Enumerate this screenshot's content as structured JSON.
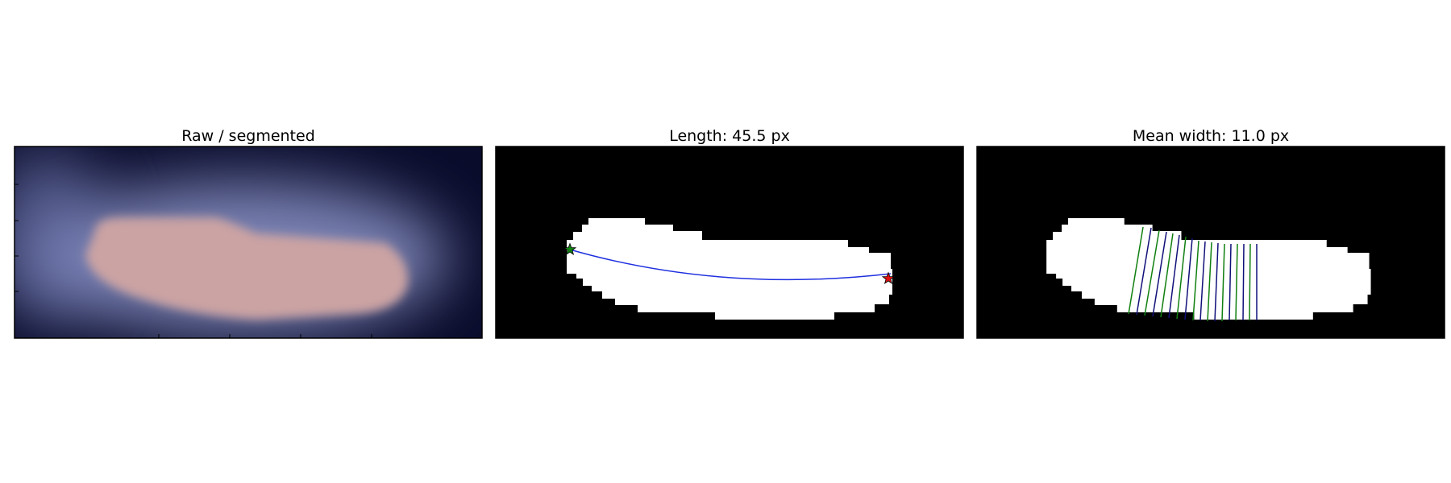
{
  "panels": {
    "raw": {
      "title": "Raw / segmented"
    },
    "length": {
      "title": "Length: 45.5 px"
    },
    "width": {
      "title": "Mean width: 11.0 px"
    }
  },
  "colors": {
    "background_dark": "#0a0c2c",
    "glow": "#aab2e0",
    "segmentation_overlay": "#c7a0a0",
    "mask": "#ffffff",
    "mask_background": "#000000",
    "centerline": "#1f2fe0",
    "start_marker": "#128212",
    "end_marker": "#e01010",
    "width_line_a": "#108010",
    "width_line_b": "#10107a"
  },
  "icons": {
    "start": "star-icon",
    "end": "star-icon"
  }
}
